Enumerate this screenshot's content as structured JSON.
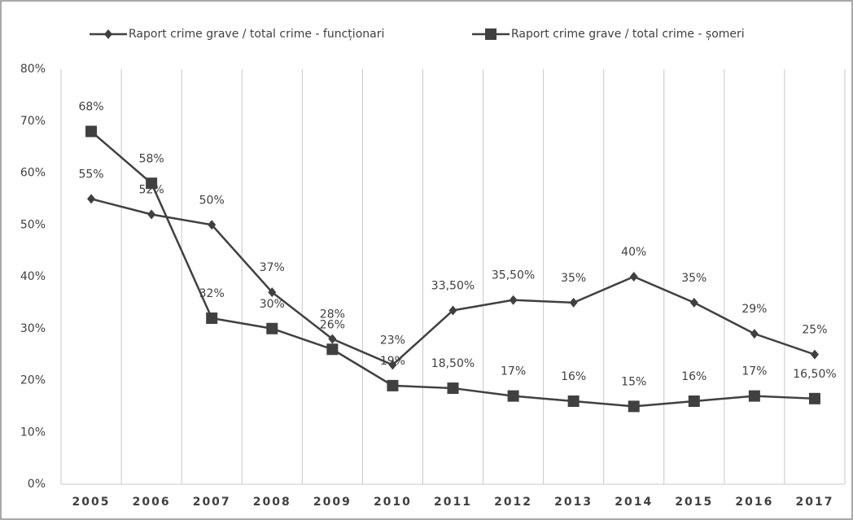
{
  "chart_data": {
    "type": "line",
    "categories": [
      "2005",
      "2006",
      "2007",
      "2008",
      "2009",
      "2010",
      "2011",
      "2012",
      "2013",
      "2014",
      "2015",
      "2016",
      "2017"
    ],
    "series": [
      {
        "name": "Raport crime grave / total crime - funcționari",
        "color": "#404040",
        "marker": "diamond",
        "values": [
          55,
          52,
          50,
          37,
          28,
          23,
          33.5,
          35.5,
          35,
          40,
          35,
          29,
          25
        ],
        "value_labels": [
          "55%",
          "52%",
          "50%",
          "37%",
          "28%",
          "23%",
          "33,50%",
          "35,50%",
          "35%",
          "40%",
          "35%",
          "29%",
          "25%"
        ]
      },
      {
        "name": "Raport crime grave / total crime - șomeri",
        "color": "#404040",
        "marker": "square",
        "values": [
          68,
          58,
          32,
          30,
          26,
          19,
          18.5,
          17,
          16,
          15,
          16,
          17,
          16.5
        ],
        "value_labels": [
          "68%",
          "58%",
          "32%",
          "30%",
          "26%",
          "19%",
          "18,50%",
          "17%",
          "16%",
          "15%",
          "16%",
          "17%",
          "16,50%"
        ]
      }
    ],
    "ylim": [
      0,
      80
    ],
    "yticks": [
      {
        "value": 0,
        "label": "0%"
      },
      {
        "value": 10,
        "label": "10%"
      },
      {
        "value": 20,
        "label": "20%"
      },
      {
        "value": 30,
        "label": "30%"
      },
      {
        "value": 40,
        "label": "40%"
      },
      {
        "value": 50,
        "label": "50%"
      },
      {
        "value": 60,
        "label": "60%"
      },
      {
        "value": 70,
        "label": "70%"
      },
      {
        "value": 80,
        "label": "80%"
      }
    ],
    "legend": "top"
  }
}
